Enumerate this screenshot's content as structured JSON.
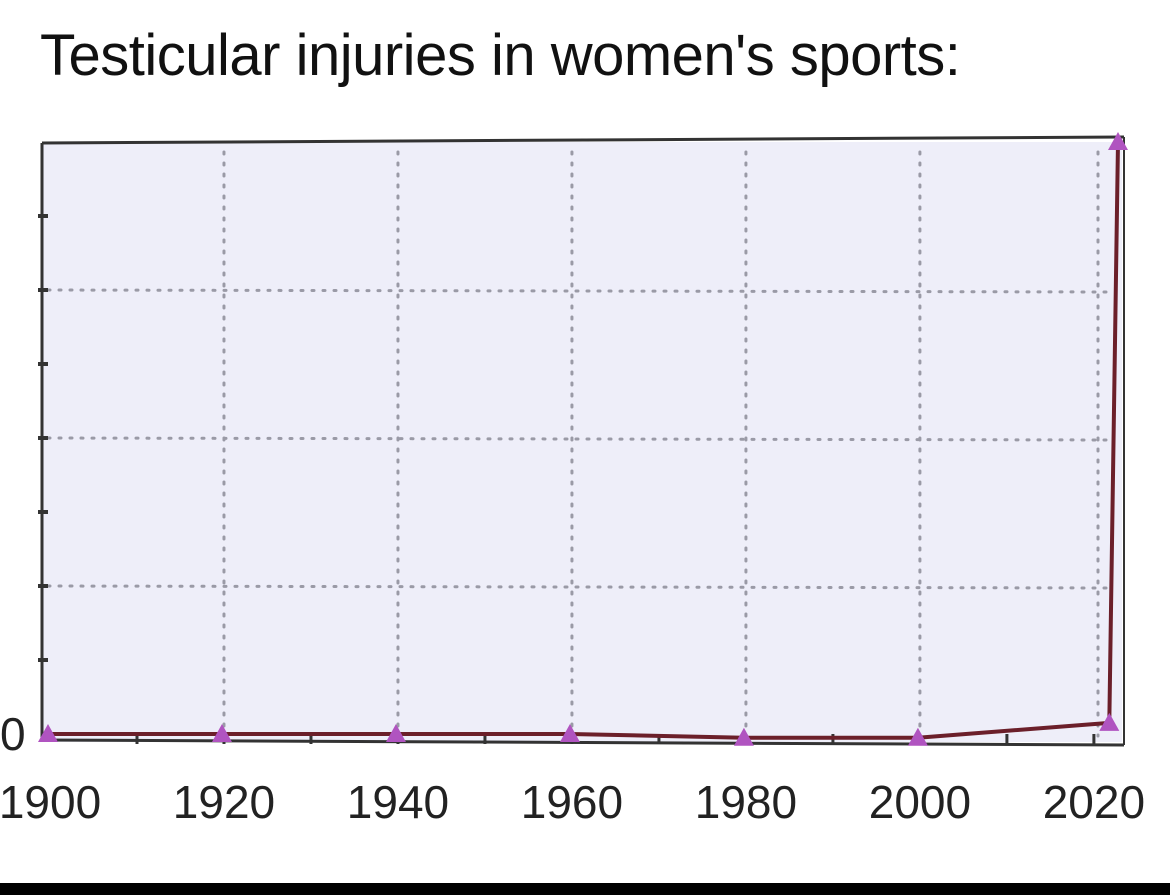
{
  "chart_data": {
    "type": "line",
    "title": "Testicular injuries in women's sports:",
    "xlabel": "",
    "ylabel": "",
    "x_ticks": [
      "1900",
      "1920",
      "1940",
      "1960",
      "1980",
      "2000",
      "2020"
    ],
    "y_ticks": [
      "0"
    ],
    "xlim": [
      1900,
      2023
    ],
    "ylim": [
      0,
      8
    ],
    "grid": true,
    "series": [
      {
        "x": [
          1900,
          1920,
          1940,
          1960,
          1980,
          2000,
          2022,
          2023
        ],
        "y": [
          0,
          0,
          0,
          0,
          -0.05,
          -0.05,
          0.15,
          8
        ]
      }
    ],
    "colors": {
      "line": "#6b1f2a",
      "marker": "#b054c0",
      "plot_bg": "#eeeef9",
      "grid": "#9a9aa6",
      "frame": "#333333"
    }
  }
}
